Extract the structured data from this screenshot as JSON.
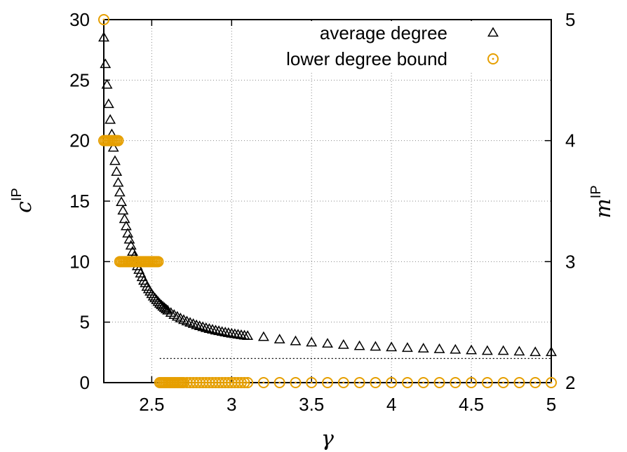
{
  "chart_data": {
    "type": "scatter",
    "xlabel": "γ",
    "ylabel_left": {
      "base": "c",
      "sup": "IP"
    },
    "ylabel_right": {
      "base": "m",
      "sup": "IP"
    },
    "xlim": [
      2.2,
      5
    ],
    "ylim_left": [
      0,
      30
    ],
    "ylim_right": [
      2,
      5
    ],
    "x_ticks": [
      {
        "value": 2.5,
        "label": "2.5"
      },
      {
        "value": 3,
        "label": "3"
      },
      {
        "value": 3.5,
        "label": "3.5"
      },
      {
        "value": 4,
        "label": "4"
      },
      {
        "value": 4.5,
        "label": "4.5"
      },
      {
        "value": 5,
        "label": "5"
      }
    ],
    "y_left_ticks": [
      {
        "value": 0,
        "label": "0"
      },
      {
        "value": 5,
        "label": "5"
      },
      {
        "value": 10,
        "label": "10"
      },
      {
        "value": 15,
        "label": "15"
      },
      {
        "value": 20,
        "label": "20"
      },
      {
        "value": 25,
        "label": "25"
      },
      {
        "value": 30,
        "label": "30"
      }
    ],
    "y_right_ticks": [
      {
        "value": 2,
        "label": "2"
      },
      {
        "value": 3,
        "label": "3"
      },
      {
        "value": 4,
        "label": "4"
      },
      {
        "value": 5,
        "label": "5"
      }
    ],
    "grid": true,
    "legend_position": "top-right",
    "reference_line": {
      "y": 2,
      "style": "dotted",
      "x_from": 2.55,
      "x_to": 5
    },
    "series": [
      {
        "name": "average degree",
        "axis": "left",
        "marker": "triangle",
        "color": "#000000",
        "points": [
          [
            2.2,
            28.5
          ],
          [
            2.21,
            26.3
          ],
          [
            2.22,
            24.6
          ],
          [
            2.23,
            23.0
          ],
          [
            2.24,
            21.7
          ],
          [
            2.25,
            20.5
          ],
          [
            2.26,
            19.4
          ],
          [
            2.27,
            18.3
          ],
          [
            2.28,
            17.4
          ],
          [
            2.29,
            16.5
          ],
          [
            2.3,
            15.7
          ],
          [
            2.31,
            14.9
          ],
          [
            2.32,
            14.2
          ],
          [
            2.33,
            13.5
          ],
          [
            2.34,
            12.9
          ],
          [
            2.35,
            12.3
          ],
          [
            2.36,
            11.8
          ],
          [
            2.37,
            11.3
          ],
          [
            2.38,
            10.8
          ],
          [
            2.39,
            10.4
          ],
          [
            2.4,
            10.0
          ],
          [
            2.41,
            9.6
          ],
          [
            2.42,
            9.3
          ],
          [
            2.43,
            9.0
          ],
          [
            2.44,
            8.7
          ],
          [
            2.45,
            8.4
          ],
          [
            2.46,
            8.2
          ],
          [
            2.47,
            7.9
          ],
          [
            2.48,
            7.7
          ],
          [
            2.49,
            7.5
          ],
          [
            2.5,
            7.3
          ],
          [
            2.51,
            7.1
          ],
          [
            2.52,
            6.95
          ],
          [
            2.53,
            6.8
          ],
          [
            2.54,
            6.65
          ],
          [
            2.55,
            6.5
          ],
          [
            2.56,
            6.38
          ],
          [
            2.57,
            6.26
          ],
          [
            2.58,
            6.15
          ],
          [
            2.59,
            6.04
          ],
          [
            2.6,
            5.94
          ],
          [
            2.62,
            5.75
          ],
          [
            2.64,
            5.58
          ],
          [
            2.66,
            5.43
          ],
          [
            2.68,
            5.29
          ],
          [
            2.7,
            5.16
          ],
          [
            2.72,
            5.04
          ],
          [
            2.74,
            4.93
          ],
          [
            2.76,
            4.83
          ],
          [
            2.78,
            4.73
          ],
          [
            2.8,
            4.65
          ],
          [
            2.82,
            4.57
          ],
          [
            2.84,
            4.49
          ],
          [
            2.86,
            4.42
          ],
          [
            2.88,
            4.36
          ],
          [
            2.9,
            4.29
          ],
          [
            2.92,
            4.24
          ],
          [
            2.94,
            4.18
          ],
          [
            2.96,
            4.13
          ],
          [
            2.98,
            4.08
          ],
          [
            3.0,
            4.03
          ],
          [
            3.02,
            3.99
          ],
          [
            3.04,
            3.95
          ],
          [
            3.06,
            3.91
          ],
          [
            3.08,
            3.87
          ],
          [
            3.1,
            3.84
          ],
          [
            3.2,
            3.75
          ],
          [
            3.3,
            3.55
          ],
          [
            3.4,
            3.4
          ],
          [
            3.5,
            3.3
          ],
          [
            3.6,
            3.2
          ],
          [
            3.7,
            3.1
          ],
          [
            3.8,
            3.0
          ],
          [
            3.9,
            2.95
          ],
          [
            4.0,
            2.9
          ],
          [
            4.1,
            2.85
          ],
          [
            4.2,
            2.8
          ],
          [
            4.3,
            2.75
          ],
          [
            4.4,
            2.7
          ],
          [
            4.5,
            2.65
          ],
          [
            4.6,
            2.6
          ],
          [
            4.7,
            2.6
          ],
          [
            4.8,
            2.55
          ],
          [
            4.9,
            2.5
          ],
          [
            5.0,
            2.5
          ]
        ]
      },
      {
        "name": "lower degree bound",
        "axis": "right",
        "marker": "circle-dot",
        "color": "#e69f00",
        "points": [
          [
            2.2,
            5
          ],
          [
            2.2,
            4
          ],
          [
            2.21,
            4
          ],
          [
            2.22,
            4
          ],
          [
            2.23,
            4
          ],
          [
            2.24,
            4
          ],
          [
            2.25,
            4
          ],
          [
            2.26,
            4
          ],
          [
            2.27,
            4
          ],
          [
            2.28,
            4
          ],
          [
            2.29,
            4
          ],
          [
            2.3,
            3
          ],
          [
            2.31,
            3
          ],
          [
            2.32,
            3
          ],
          [
            2.33,
            3
          ],
          [
            2.34,
            3
          ],
          [
            2.35,
            3
          ],
          [
            2.36,
            3
          ],
          [
            2.37,
            3
          ],
          [
            2.38,
            3
          ],
          [
            2.39,
            3
          ],
          [
            2.4,
            3
          ],
          [
            2.41,
            3
          ],
          [
            2.42,
            3
          ],
          [
            2.43,
            3
          ],
          [
            2.44,
            3
          ],
          [
            2.45,
            3
          ],
          [
            2.46,
            3
          ],
          [
            2.47,
            3
          ],
          [
            2.48,
            3
          ],
          [
            2.49,
            3
          ],
          [
            2.5,
            3
          ],
          [
            2.51,
            3
          ],
          [
            2.52,
            3
          ],
          [
            2.53,
            3
          ],
          [
            2.54,
            3
          ],
          [
            2.55,
            2
          ],
          [
            2.56,
            2
          ],
          [
            2.57,
            2
          ],
          [
            2.58,
            2
          ],
          [
            2.59,
            2
          ],
          [
            2.6,
            2
          ],
          [
            2.61,
            2
          ],
          [
            2.62,
            2
          ],
          [
            2.63,
            2
          ],
          [
            2.64,
            2
          ],
          [
            2.65,
            2
          ],
          [
            2.66,
            2
          ],
          [
            2.67,
            2
          ],
          [
            2.68,
            2
          ],
          [
            2.69,
            2
          ],
          [
            2.7,
            2
          ],
          [
            2.72,
            2
          ],
          [
            2.74,
            2
          ],
          [
            2.76,
            2
          ],
          [
            2.78,
            2
          ],
          [
            2.8,
            2
          ],
          [
            2.82,
            2
          ],
          [
            2.84,
            2
          ],
          [
            2.86,
            2
          ],
          [
            2.88,
            2
          ],
          [
            2.9,
            2
          ],
          [
            2.92,
            2
          ],
          [
            2.94,
            2
          ],
          [
            2.96,
            2
          ],
          [
            2.98,
            2
          ],
          [
            3.0,
            2
          ],
          [
            3.02,
            2
          ],
          [
            3.04,
            2
          ],
          [
            3.06,
            2
          ],
          [
            3.08,
            2
          ],
          [
            3.1,
            2
          ],
          [
            3.2,
            2
          ],
          [
            3.3,
            2
          ],
          [
            3.4,
            2
          ],
          [
            3.5,
            2
          ],
          [
            3.6,
            2
          ],
          [
            3.7,
            2
          ],
          [
            3.8,
            2
          ],
          [
            3.9,
            2
          ],
          [
            4.0,
            2
          ],
          [
            4.1,
            2
          ],
          [
            4.2,
            2
          ],
          [
            4.3,
            2
          ],
          [
            4.4,
            2
          ],
          [
            4.5,
            2
          ],
          [
            4.6,
            2
          ],
          [
            4.7,
            2
          ],
          [
            4.8,
            2
          ],
          [
            4.9,
            2
          ],
          [
            5.0,
            2
          ]
        ]
      }
    ]
  }
}
